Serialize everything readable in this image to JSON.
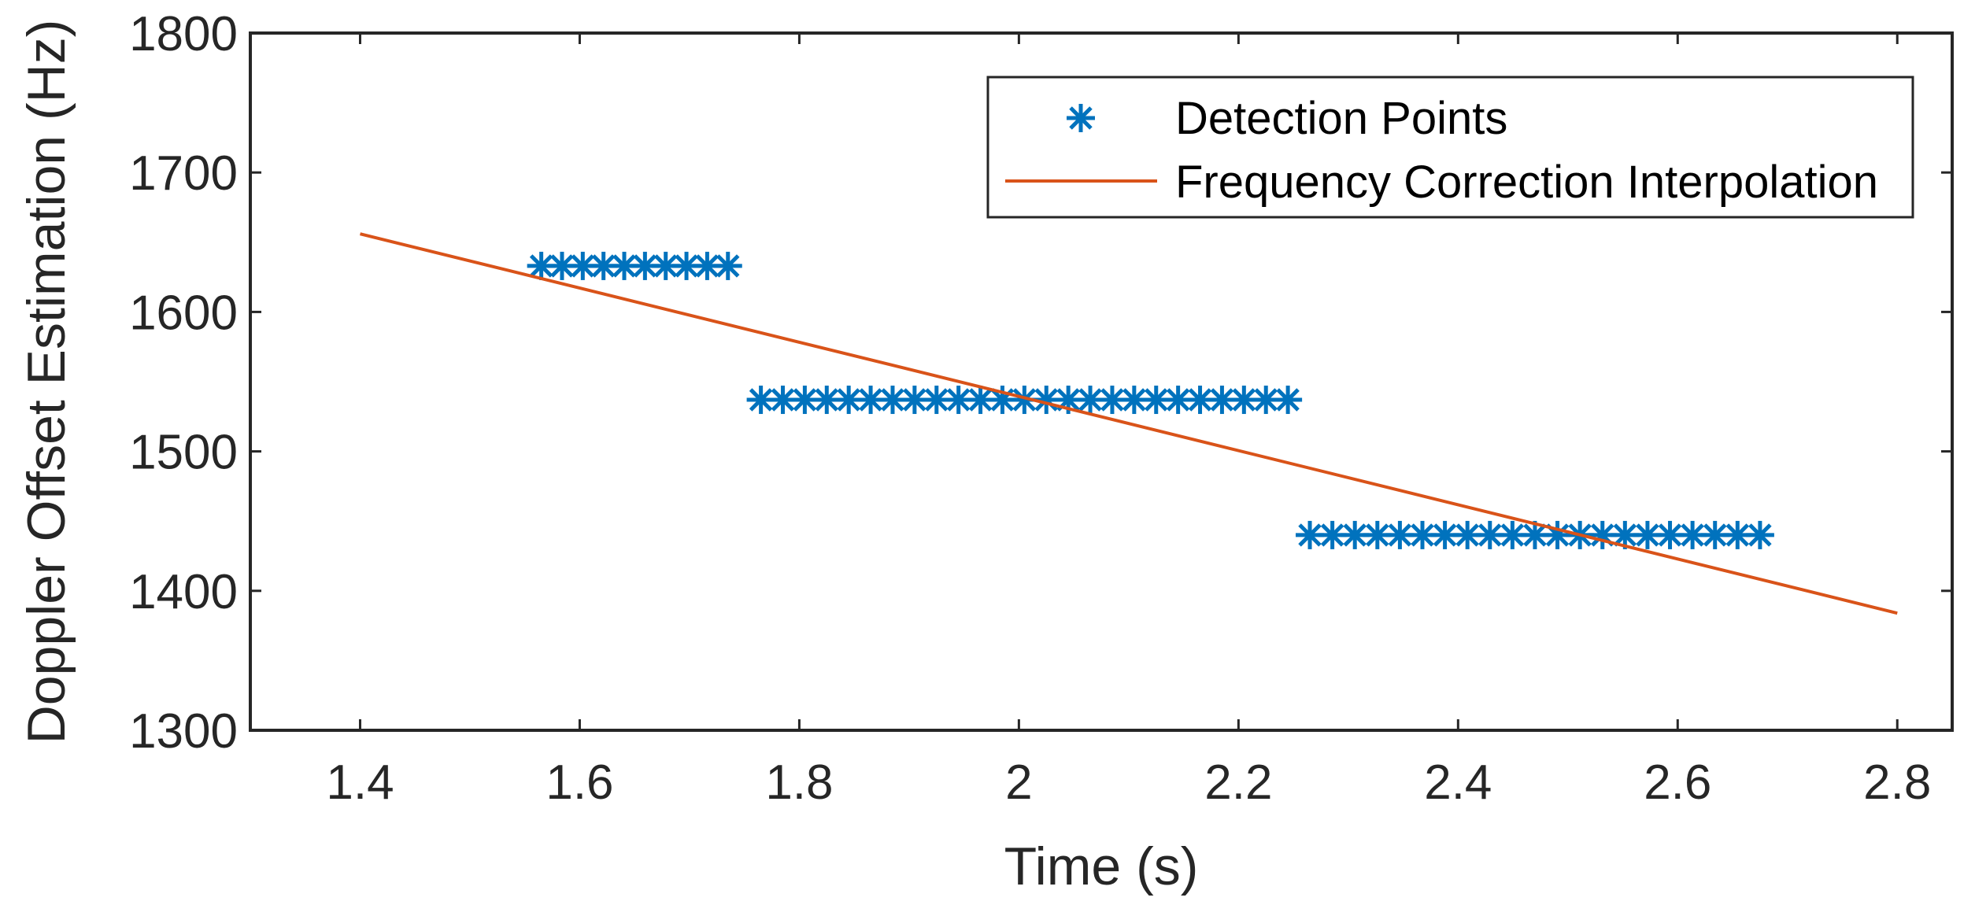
{
  "chart_data": {
    "type": "line",
    "title": "",
    "xlabel": "Time (s)",
    "ylabel": "Doppler Offset Estimation (Hz)",
    "xlim": [
      1.3,
      2.85
    ],
    "ylim": [
      1300,
      1800
    ],
    "xticks": [
      1.4,
      1.6,
      1.8,
      2.0,
      2.2,
      2.4,
      2.6,
      2.8
    ],
    "xtick_labels": [
      "1.4",
      "1.6",
      "1.8",
      "2",
      "2.2",
      "2.4",
      "2.6",
      "2.8"
    ],
    "yticks": [
      1300,
      1400,
      1500,
      1600,
      1700,
      1800
    ],
    "ytick_labels": [
      "1300",
      "1400",
      "1500",
      "1600",
      "1700",
      "1800"
    ],
    "grid": false,
    "legend_position": "top-right",
    "series": [
      {
        "name": "Detection Points",
        "marker": "asterisk",
        "color": "#0072BD",
        "groups": [
          {
            "y": 1633,
            "x_start": 1.565,
            "x_end": 1.735,
            "count": 10
          },
          {
            "y": 1537,
            "x_start": 1.765,
            "x_end": 2.245,
            "count": 25
          },
          {
            "y": 1440,
            "x_start": 2.265,
            "x_end": 2.675,
            "count": 21
          }
        ]
      },
      {
        "name": "Frequency Correction Interpolation",
        "marker": "line",
        "color": "#D95319",
        "x": [
          1.4,
          2.8
        ],
        "y": [
          1656,
          1384
        ]
      }
    ]
  }
}
